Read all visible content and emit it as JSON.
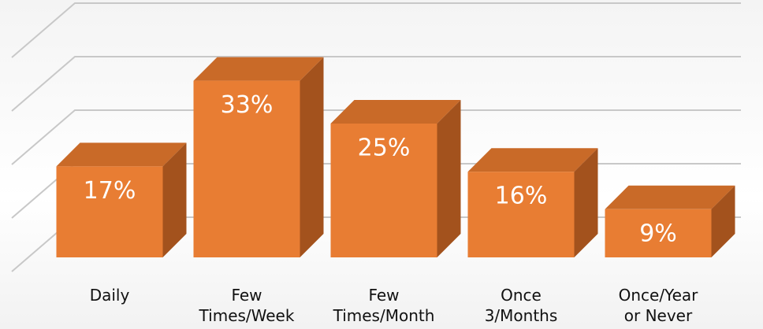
{
  "chart_data": {
    "type": "bar3d",
    "categories": [
      "Daily",
      "Few\nTimes/Week",
      "Few\nTimes/Month",
      "Once\n3/Months",
      "Once/Year\nor Never"
    ],
    "values": [
      17,
      33,
      25,
      16,
      9
    ],
    "value_labels": [
      "17%",
      "33%",
      "25%",
      "16%",
      "9%"
    ],
    "color": "#e87d33",
    "ylim": [
      0,
      40
    ],
    "yticks": [
      0,
      10,
      20,
      30,
      40
    ],
    "grid": true
  }
}
